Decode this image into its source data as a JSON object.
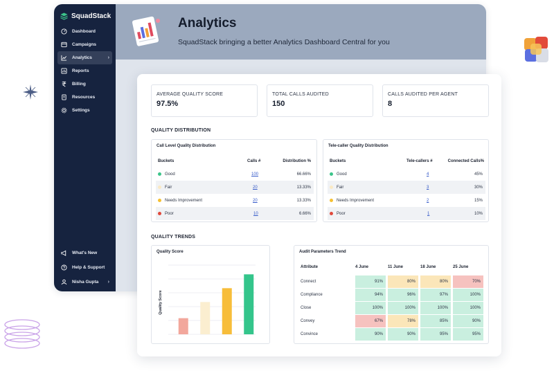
{
  "app": {
    "brand": "SquadStack"
  },
  "sidebar": {
    "items": [
      {
        "label": "Dashboard",
        "icon": "dashboard-icon"
      },
      {
        "label": "Campaigns",
        "icon": "campaigns-icon"
      },
      {
        "label": "Analytics",
        "icon": "analytics-icon",
        "active": true,
        "chevron": "›"
      },
      {
        "label": "Reports",
        "icon": "reports-icon"
      },
      {
        "label": "Billing",
        "icon": "rupee-icon"
      },
      {
        "label": "Resources",
        "icon": "document-icon"
      },
      {
        "label": "Settings",
        "icon": "gear-icon"
      }
    ],
    "bottom_items": [
      {
        "label": "What's New",
        "icon": "megaphone-icon"
      },
      {
        "label": "Help & Support",
        "icon": "help-icon"
      },
      {
        "label": "Nisha Gupta",
        "icon": "user-icon",
        "chevron": "›"
      }
    ]
  },
  "header": {
    "title": "Analytics",
    "subtitle": "SquadStack bringing a better Analytics Dashboard Central for you"
  },
  "stats": [
    {
      "label": "AVERAGE QUALITY SCORE",
      "value": "97.5%"
    },
    {
      "label": "TOTAL CALLS AUDITED",
      "value": "150"
    },
    {
      "label": "CALLS AUDITED PER AGENT",
      "value": "8"
    }
  ],
  "quality_distribution": {
    "section_title": "QUALITY DISTRIBUTION",
    "call_level": {
      "title": "Call Level Quality Distribution",
      "headers": [
        "Buckets",
        "Calls #",
        "Distribution %"
      ],
      "rows": [
        {
          "bucket": "Good",
          "count": "100",
          "pct": "66.66%",
          "color": "#3cc48a"
        },
        {
          "bucket": "Fair",
          "count": "20",
          "pct": "13.33%",
          "color": "#fbe9c4"
        },
        {
          "bucket": "Needs Improvement",
          "count": "20",
          "pct": "13.33%",
          "color": "#f5c032"
        },
        {
          "bucket": "Poor",
          "count": "10",
          "pct": "6.66%",
          "color": "#e0483b"
        }
      ]
    },
    "tele_caller": {
      "title": "Tele-caller Quality Distribution",
      "headers": [
        "Buckets",
        "Tele-callers #",
        "Connected Calls%"
      ],
      "rows": [
        {
          "bucket": "Good",
          "count": "4",
          "pct": "45%",
          "color": "#3cc48a"
        },
        {
          "bucket": "Fair",
          "count": "3",
          "pct": "30%",
          "color": "#fbe9c4"
        },
        {
          "bucket": "Needs Improvement",
          "count": "2",
          "pct": "15%",
          "color": "#f5c032"
        },
        {
          "bucket": "Poor",
          "count": "1",
          "pct": "10%",
          "color": "#e0483b"
        }
      ]
    }
  },
  "quality_trends": {
    "section_title": "QUALITY TRENDS",
    "quality_score": {
      "title": "Quality Score",
      "ylabel": "Quality Score"
    },
    "audit_trend": {
      "title": "Audit Parameters Trend",
      "headers": [
        "Attribute",
        "4 June",
        "11 June",
        "18 June",
        "25 June"
      ],
      "rows": [
        {
          "attribute": "Connect",
          "values": [
            "91%",
            "80%",
            "80%",
            "70%"
          ]
        },
        {
          "attribute": "Compliance",
          "values": [
            "94%",
            "96%",
            "97%",
            "100%"
          ]
        },
        {
          "attribute": "Close",
          "values": [
            "100%",
            "100%",
            "100%",
            "100%"
          ]
        },
        {
          "attribute": "Convey",
          "values": [
            "67%",
            "78%",
            "85%",
            "90%"
          ]
        },
        {
          "attribute": "Convince",
          "values": [
            "90%",
            "90%",
            "95%",
            "95%"
          ]
        }
      ],
      "colors": {
        "high": "#c9efdf",
        "mid": "#fbe6b9",
        "low": "#f6c2bf"
      }
    }
  },
  "chart_data": {
    "type": "bar",
    "categories": [
      "",
      "",
      "",
      ""
    ],
    "values": [
      35,
      70,
      100,
      130
    ],
    "colors": [
      "#f2a79c",
      "#fbeed0",
      "#f7bd3a",
      "#34c58b"
    ],
    "ylabel": "Quality Score",
    "ylim": [
      0,
      150
    ],
    "grid": true
  }
}
